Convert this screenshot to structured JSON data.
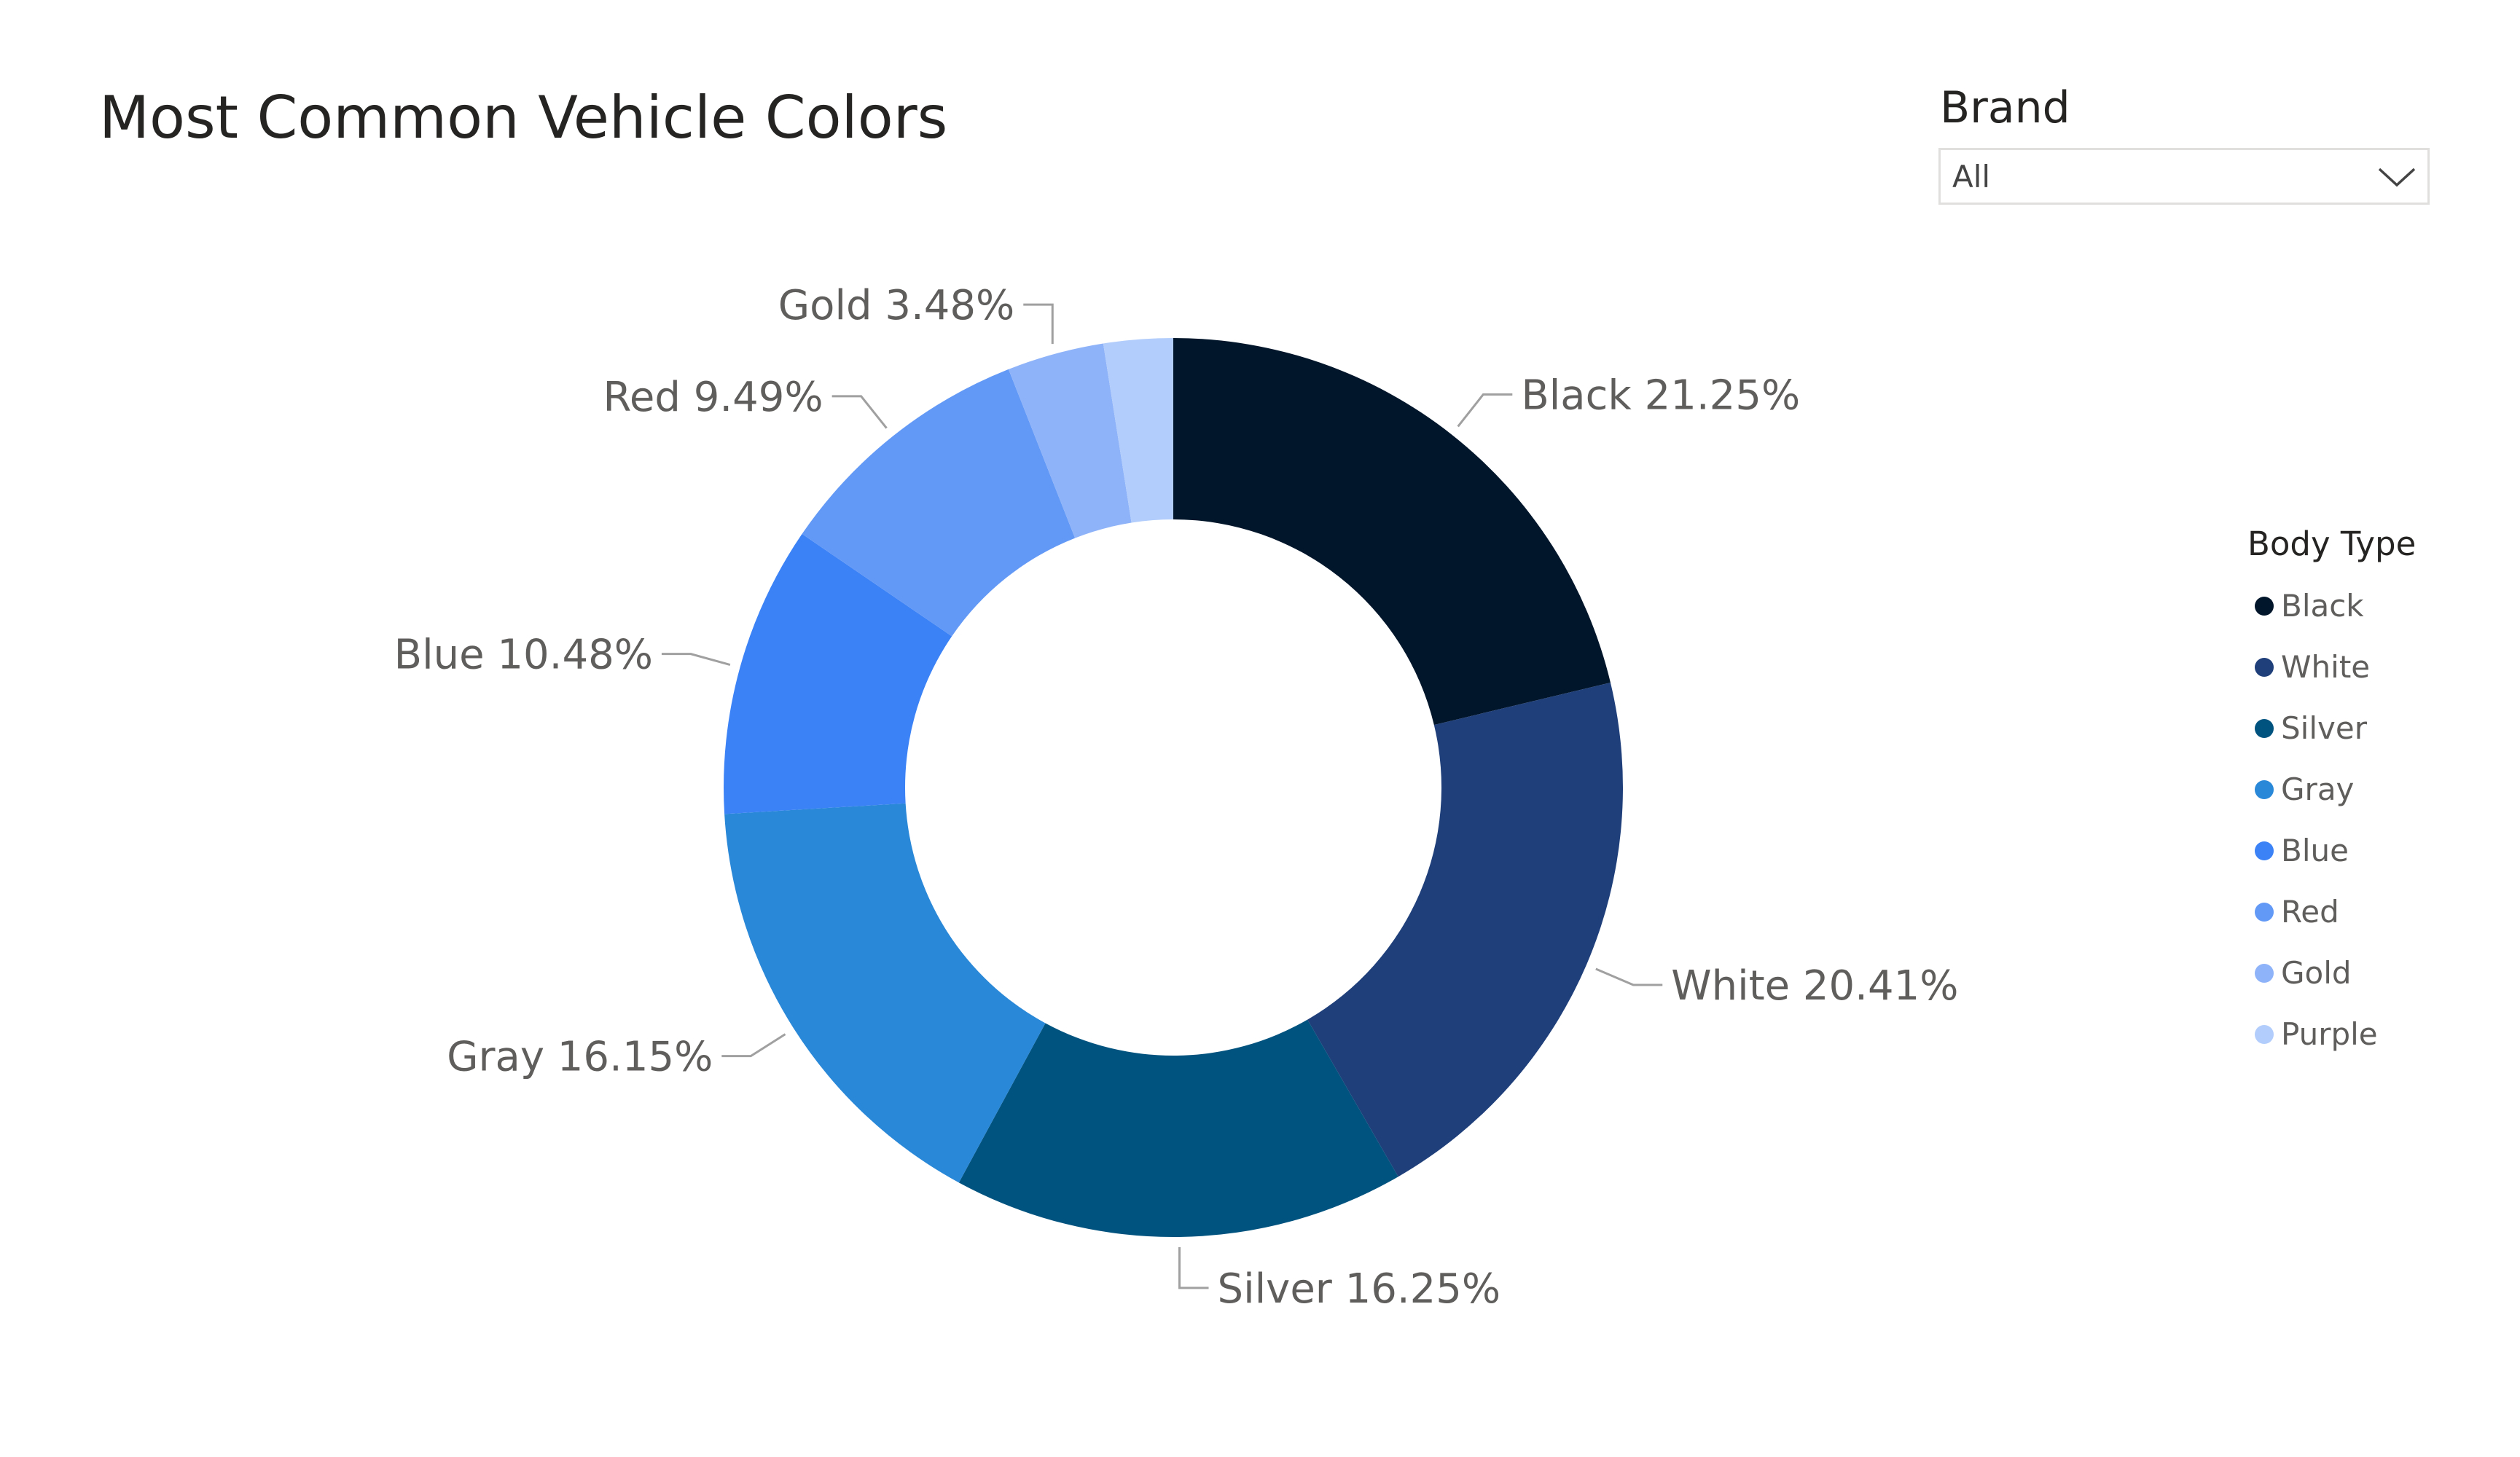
{
  "title": "Most Common Vehicle Colors",
  "slicer": {
    "title": "Brand",
    "value": "All"
  },
  "legend": {
    "title": "Body Type",
    "items": [
      {
        "label": "Black",
        "color": "#02162b"
      },
      {
        "label": "White",
        "color": "#1f3f7a"
      },
      {
        "label": "Silver",
        "color": "#00537f"
      },
      {
        "label": "Gray",
        "color": "#2a88d8"
      },
      {
        "label": "Blue",
        "color": "#3b82f6"
      },
      {
        "label": "Red",
        "color": "#6399f6"
      },
      {
        "label": "Gold",
        "color": "#8fb3f8"
      },
      {
        "label": "Purple",
        "color": "#b2cdfb"
      }
    ]
  },
  "chart_data": {
    "type": "pie",
    "variant": "donut",
    "title": "Most Common Vehicle Colors",
    "unit": "%",
    "categories": [
      "Black",
      "White",
      "Silver",
      "Gray",
      "Blue",
      "Red",
      "Gold",
      "Purple"
    ],
    "values": [
      21.25,
      20.41,
      16.25,
      16.15,
      10.48,
      9.49,
      3.48,
      2.49
    ],
    "data_labels": [
      "Black 21.25%",
      "White 20.41%",
      "Silver 16.25%",
      "Gray 16.15%",
      "Blue 10.48%",
      "Red 9.49%",
      "Gold 3.48%",
      ""
    ],
    "colors": [
      "#02162b",
      "#1f3f7a",
      "#00537f",
      "#2a88d8",
      "#3b82f6",
      "#6399f6",
      "#8fb3f8",
      "#b2cdfb"
    ],
    "legend_title": "Body Type",
    "legend_position": "right"
  }
}
